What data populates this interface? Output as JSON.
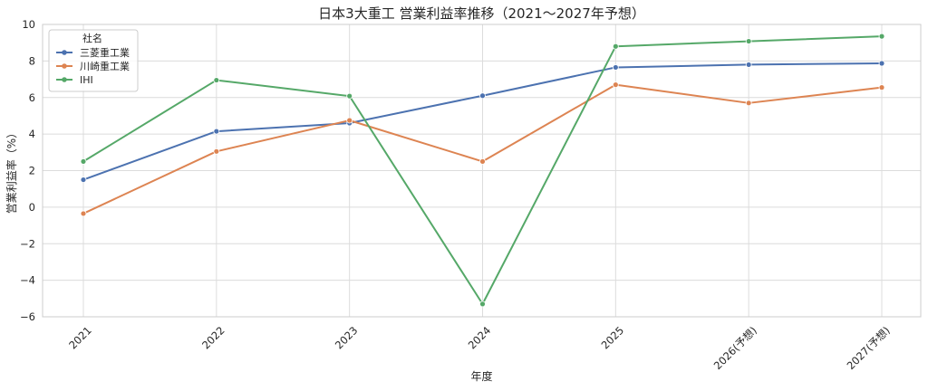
{
  "chart_data": {
    "type": "line",
    "title": "日本3大重工 営業利益率推移（2021～2027年予想）",
    "xlabel": "年度",
    "ylabel": "営業利益率（%）",
    "categories": [
      "2021",
      "2022",
      "2023",
      "2024",
      "2025",
      "2026(予想)",
      "2027(予想)"
    ],
    "ylim": [
      -6,
      10
    ],
    "yticks": [
      "−6",
      "−4",
      "−2",
      "0",
      "2",
      "4",
      "6",
      "8",
      "10"
    ],
    "ytick_values": [
      -6,
      -4,
      -2,
      0,
      2,
      4,
      6,
      8,
      10
    ],
    "grid": true,
    "legend_title": "社名",
    "legend_position": "top-left",
    "series": [
      {
        "name": "三菱重工業",
        "color": "#4c72b0",
        "values": [
          1.5,
          4.15,
          4.6,
          6.1,
          7.65,
          7.8,
          7.87
        ]
      },
      {
        "name": "川崎重工業",
        "color": "#dd8452",
        "values": [
          -0.35,
          3.05,
          4.75,
          2.5,
          6.7,
          5.7,
          6.55
        ]
      },
      {
        "name": "IHI",
        "color": "#55a868",
        "values": [
          2.5,
          6.95,
          6.08,
          -5.3,
          8.8,
          9.08,
          9.35
        ]
      }
    ]
  }
}
